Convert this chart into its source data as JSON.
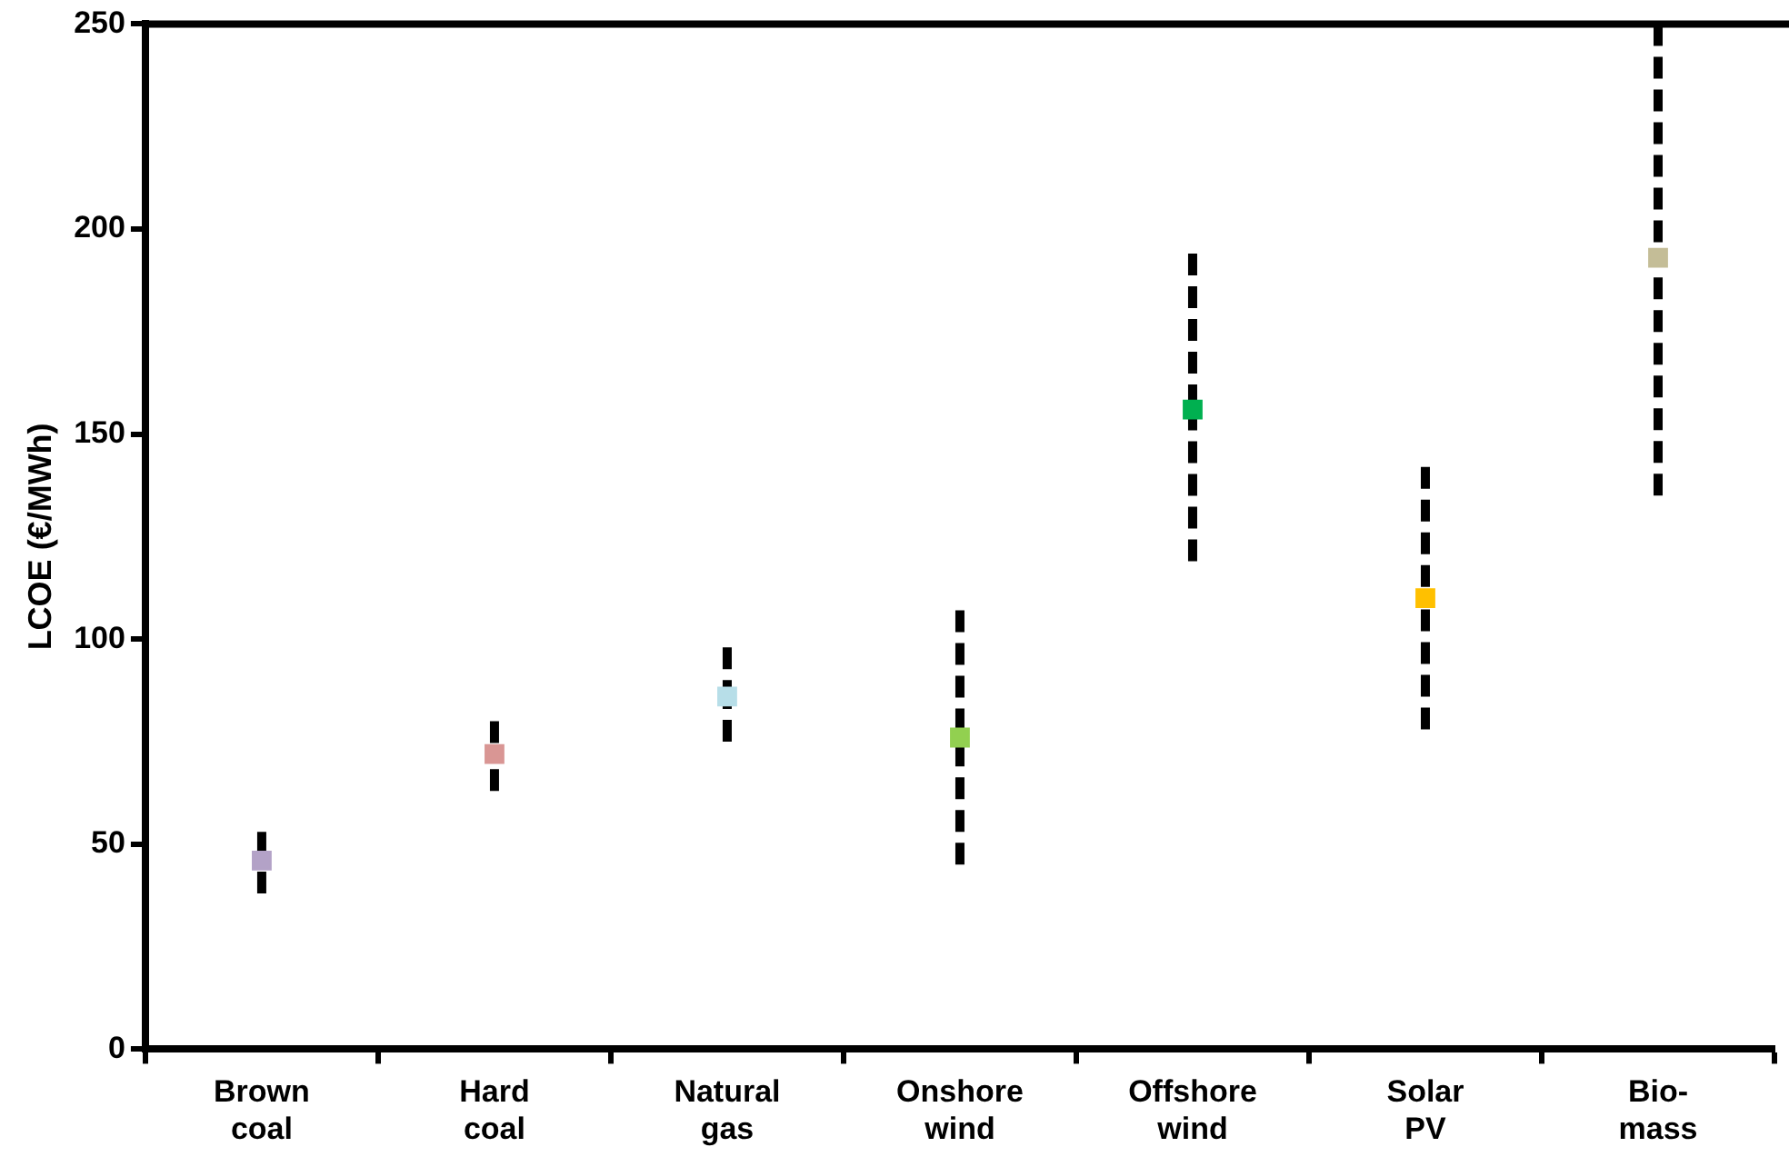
{
  "chart_data": {
    "type": "scatter",
    "ylabel": "LCOE (€/MWh)",
    "categories": [
      "Brown coal",
      "Hard coal",
      "Natural gas",
      "Onshore wind",
      "Offshore wind",
      "Solar PV",
      "Bio-mass"
    ],
    "values": [
      46,
      72,
      86,
      76,
      156,
      110,
      193
    ],
    "colors": [
      "#b3a2c7",
      "#d99694",
      "#b7dee8",
      "#92d050",
      "#00b050",
      "#ffc000",
      "#c4bd97"
    ],
    "errors": [
      [
        38,
        53
      ],
      [
        63,
        80
      ],
      [
        75,
        98
      ],
      [
        45,
        107
      ],
      [
        119,
        194
      ],
      [
        78,
        142
      ],
      [
        135,
        250
      ]
    ],
    "ylim": [
      0,
      250
    ],
    "yticks": [
      0,
      50,
      100,
      150,
      200,
      250
    ],
    "marker": "square",
    "grid": false,
    "legend": false
  }
}
